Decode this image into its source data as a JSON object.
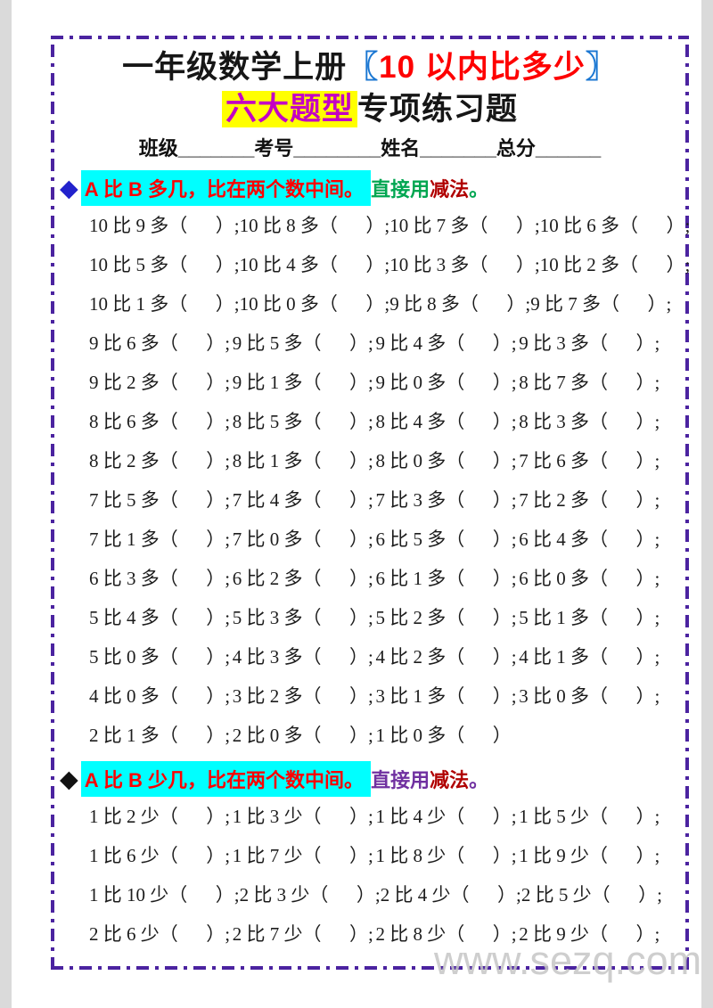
{
  "title": {
    "part1": "一年级数学上册",
    "bracket_open": "〖",
    "subject": "10 以内比多少",
    "bracket_close": "〗",
    "highlight": "六大题型",
    "rest": "专项练习题"
  },
  "info_line": "班级_______考号________姓名_______总分______",
  "sections": [
    {
      "bullet": "◆",
      "heading_main": "A 比 B 多几，比在两个数中间。",
      "tip_prefix": "直接用",
      "tip_method": "减法",
      "tip_period": "。",
      "colors": {
        "bullet": "#2222cc",
        "tip": "#00a651"
      },
      "rows": [
        [
          "10 比 9 多（      ）;",
          "10 比 8 多（      ）;",
          "10 比 7 多（      ）;",
          "10 比 6 多（      ）;"
        ],
        [
          "10 比 5 多（      ）;",
          "10 比 4 多（      ）;",
          "10 比 3 多（      ）;",
          "10 比 2 多（      ）;"
        ],
        [
          "10 比 1 多（      ）;",
          "10 比 0 多（      ）;",
          "9 比 8 多（      ）;",
          "9 比 7 多（      ）;"
        ],
        [
          "9 比 6 多（      ）;",
          "9 比 5 多（      ）;",
          "9 比 4 多（      ）;",
          "9 比 3 多（      ）;"
        ],
        [
          "9 比 2 多（      ）;",
          "9 比 1 多（      ）;",
          "9 比 0 多（      ）;",
          "8 比 7 多（      ）;"
        ],
        [
          "8 比 6 多（      ）;",
          "8 比 5 多（      ）;",
          "8 比 4 多（      ）;",
          "8 比 3 多（      ）;"
        ],
        [
          "8 比 2 多（      ）;",
          "8 比 1 多（      ）;",
          "8 比 0 多（      ）;",
          "7 比 6 多（      ）;"
        ],
        [
          "7 比 5 多（      ）;",
          "7 比 4 多（      ）;",
          "7 比 3 多（      ）;",
          "7 比 2 多（      ）;"
        ],
        [
          "7 比 1 多（      ）;",
          "7 比 0 多（      ）;",
          "6 比 5 多（      ）;",
          "6 比 4 多（      ）;"
        ],
        [
          "6 比 3 多（      ）;",
          "6 比 2 多（      ）;",
          "6 比 1 多（      ）;",
          "6 比 0 多（      ）;"
        ],
        [
          "5 比 4 多（      ）;",
          "5 比 3 多（      ）;",
          "5 比 2 多（      ）;",
          "5 比 1 多（      ）;"
        ],
        [
          "5 比 0 多（      ）;",
          "4 比 3 多（      ）;",
          "4 比 2 多（      ）;",
          "4 比 1 多（      ）;"
        ],
        [
          "4 比 0 多（      ）;",
          "3 比 2 多（      ）;",
          "3 比 1 多（      ）;",
          "3 比 0 多（      ）;"
        ],
        [
          "2 比 1 多（      ）;",
          "2 比 0 多（      ）;",
          "1 比 0 多（      ）"
        ]
      ]
    },
    {
      "bullet": "◆",
      "heading_main": "A 比 B 少几，比在两个数中间。",
      "tip_prefix": "直接用",
      "tip_method": "减法",
      "tip_period": "。",
      "colors": {
        "bullet": "#111111",
        "tip": "#7030a0"
      },
      "rows": [
        [
          "1 比 2 少（      ）;",
          "1 比 3 少（      ）;",
          "1 比 4 少（      ）;",
          "1 比 5 少（      ）;"
        ],
        [
          "1 比 6 少（      ）;",
          "1 比 7 少（      ）;",
          "1 比 8 少（      ）;",
          "1 比 9 少（      ）;"
        ],
        [
          "1 比 10 少（      ）;",
          "2 比 3 少（      ）;",
          "2 比 4 少（      ）;",
          "2 比 5 少（      ）;"
        ],
        [
          "2 比 6 少（      ）;",
          "2 比 7 少（      ）;",
          "2 比 8 少（      ）;",
          "2 比 9 少（      ）;"
        ]
      ]
    }
  ],
  "watermark": "www.sezq.com",
  "colors": {
    "title_black": "#161616",
    "bracket_blue": "#1976d2",
    "subject_red": "#fe0000",
    "highlight_magenta": "#c400c4",
    "yellow_highlight": "#ffff00",
    "cyan_highlight": "#00ffff",
    "rule_red": "#fe0000",
    "method_red": "#b00000",
    "border_purple": "#4b23a0",
    "watermark_gray": "#c6c6c6",
    "page_edge_gray": "#dadada"
  }
}
